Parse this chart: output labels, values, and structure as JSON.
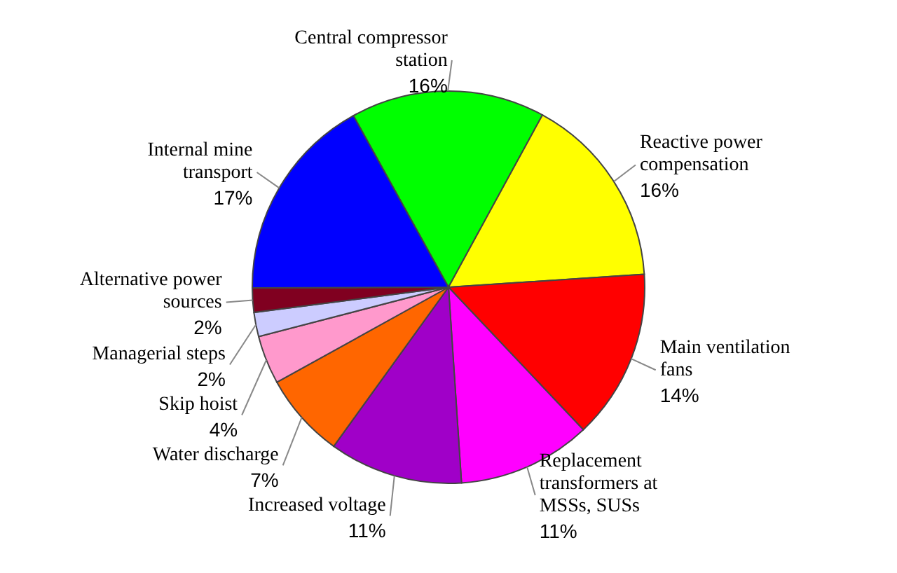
{
  "chart_data": {
    "type": "pie",
    "categories": [
      "Central compressor station",
      "Reactive power compensation",
      "Main ventilation fans",
      "Replacement transformers at MSSs, SUSs",
      "Increased voltage",
      "Water discharge",
      "Skip hoist",
      "Managerial steps",
      "Alternative power sources",
      "Internal mine transport"
    ],
    "values": [
      16,
      16,
      14,
      11,
      11,
      7,
      4,
      2,
      2,
      17
    ],
    "value_labels": [
      "16%",
      "16%",
      "14%",
      "11%",
      "11%",
      "7%",
      "4%",
      "2%",
      "2%",
      "17%"
    ],
    "colors": [
      "#00ff00",
      "#ffff00",
      "#ff0000",
      "#ff00ff",
      "#a000c8",
      "#ff6600",
      "#ff99cc",
      "#ccccff",
      "#800020",
      "#0000ff"
    ]
  }
}
